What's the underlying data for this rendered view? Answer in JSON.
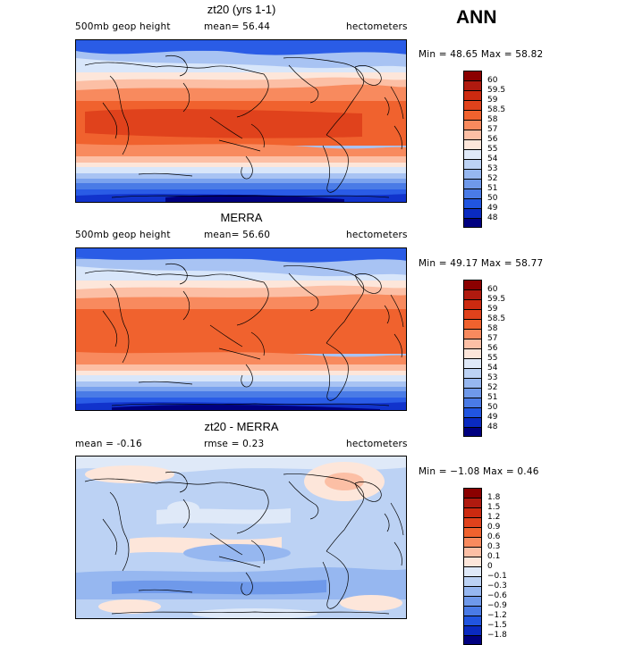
{
  "season": "ANN",
  "panels": [
    {
      "title": "zt20 (yrs 1-1)",
      "left": "500mb geop height",
      "mid": "mean=  56.44",
      "right": "hectometers",
      "minmax": "Min =  48.65 Max =  58.82",
      "colorbar": {
        "labels": [
          "60",
          "59.5",
          "59",
          "58.5",
          "58",
          "57",
          "56",
          "55",
          "54",
          "53",
          "52",
          "51",
          "50",
          "49",
          "48"
        ],
        "colors": [
          "#8b0000",
          "#b01a0f",
          "#cc2a10",
          "#e0421c",
          "#f0622e",
          "#f88a5e",
          "#fcbfa5",
          "#fde6da",
          "#dfe9f8",
          "#bcd2f4",
          "#96b7f0",
          "#6f99ea",
          "#4a7be6",
          "#2155e0",
          "#0a2ac0",
          "#000080"
        ]
      },
      "colors": {
        "c1": "#000080",
        "c2": "#1133cc",
        "c3": "#2a5ce6",
        "c4": "#4a7be6",
        "c5": "#7aa2ee",
        "c6": "#a8c3f3",
        "c7": "#d8e6fa",
        "c8": "#fde6da",
        "c9": "#fcbfa5",
        "c10": "#f88a5e",
        "c11": "#f0622e",
        "c12": "#e0421c"
      }
    },
    {
      "title": "MERRA",
      "left": "500mb geop height",
      "mid": "mean=  56.60",
      "right": "hectometers",
      "minmax": "Min =  49.17 Max =  58.77",
      "colorbar": {
        "labels": [
          "60",
          "59.5",
          "59",
          "58.5",
          "58",
          "57",
          "56",
          "55",
          "54",
          "53",
          "52",
          "51",
          "50",
          "49",
          "48"
        ],
        "colors": [
          "#8b0000",
          "#b01a0f",
          "#cc2a10",
          "#e0421c",
          "#f0622e",
          "#f88a5e",
          "#fcbfa5",
          "#fde6da",
          "#dfe9f8",
          "#bcd2f4",
          "#96b7f0",
          "#6f99ea",
          "#4a7be6",
          "#2155e0",
          "#0a2ac0",
          "#000080"
        ]
      },
      "colors": {
        "c1": "#000080",
        "c2": "#1133cc",
        "c3": "#2a5ce6",
        "c4": "#4a7be6",
        "c5": "#7aa2ee",
        "c6": "#a8c3f3",
        "c7": "#d8e6fa",
        "c8": "#fde6da",
        "c9": "#fcbfa5",
        "c10": "#f88a5e",
        "c11": "#f0622e",
        "c12": "#e0421c"
      }
    },
    {
      "title": "zt20 - MERRA",
      "left": "mean =  -0.16",
      "mid": "rmse =   0.23",
      "right": "hectometers",
      "minmax": "Min =  −1.08 Max =   0.46",
      "colorbar": {
        "labels": [
          "1.8",
          "1.5",
          "1.2",
          "0.9",
          "0.6",
          "0.3",
          "0.1",
          "0",
          "−0.1",
          "−0.3",
          "−0.6",
          "−0.9",
          "−1.2",
          "−1.5",
          "−1.8"
        ],
        "colors": [
          "#8b0000",
          "#b01a0f",
          "#cc2a10",
          "#e0421c",
          "#f0622e",
          "#f88a5e",
          "#fcbfa5",
          "#fde6da",
          "#dfe9f8",
          "#bcd2f4",
          "#96b7f0",
          "#6f99ea",
          "#4a7be6",
          "#2155e0",
          "#0a2ac0",
          "#000080"
        ]
      },
      "colors": {
        "base": "#bcd2f4",
        "light": "#dfe9f8",
        "mid": "#96b7f0",
        "dark": "#6f99ea",
        "warm": "#fde6da",
        "warm2": "#fcbfa5"
      }
    }
  ]
}
